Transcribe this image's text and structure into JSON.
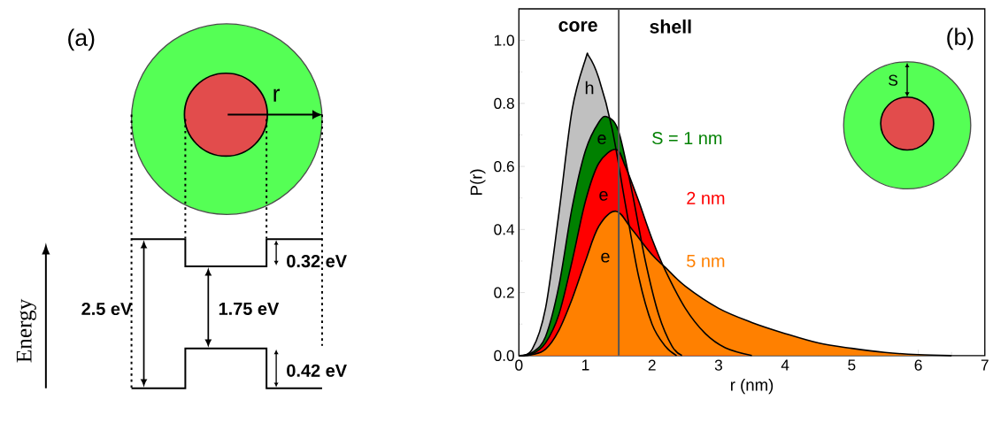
{
  "chart_data": [
    {
      "type": "other",
      "ylabel": "Energy",
      "annotations": [
        "(a)",
        "r",
        "2.5 eV",
        "1.75 eV",
        "0.32 eV",
        "0.42 eV"
      ]
    },
    {
      "type": "area",
      "xlabel": "r (nm)",
      "ylabel": "P(r)",
      "xlim": [
        0,
        7
      ],
      "ylim": [
        0,
        1.1
      ],
      "xticks": [
        0,
        1,
        2,
        3,
        4,
        5,
        6,
        7
      ],
      "yticks": [
        {
          "value": 0,
          "label": "0.0"
        },
        {
          "value": 0.2,
          "label": "0.2"
        },
        {
          "value": 0.4,
          "label": "0.4"
        },
        {
          "value": 0.6,
          "label": "0.6"
        },
        {
          "value": 0.8,
          "label": "0.8"
        },
        {
          "value": 1.0,
          "label": "1.0"
        }
      ],
      "series": [
        {
          "name": "h",
          "color": "#c0c0c0",
          "x": [
            0,
            0.2,
            0.4,
            0.6,
            0.8,
            1.0,
            1.05,
            1.2,
            1.4,
            1.6,
            1.8,
            2.0,
            2.2,
            2.37
          ],
          "values": [
            0,
            0.02,
            0.15,
            0.45,
            0.78,
            0.94,
            0.95,
            0.88,
            0.72,
            0.48,
            0.25,
            0.1,
            0.03,
            0
          ]
        },
        {
          "name": "S = 1 nm",
          "color": "#008000",
          "x": [
            0,
            0.2,
            0.4,
            0.6,
            0.8,
            1.0,
            1.2,
            1.33,
            1.5,
            1.7,
            1.9,
            2.1,
            2.3,
            2.45
          ],
          "values": [
            0,
            0.01,
            0.06,
            0.22,
            0.47,
            0.65,
            0.74,
            0.757,
            0.71,
            0.52,
            0.3,
            0.13,
            0.03,
            0
          ]
        },
        {
          "name": "2 nm",
          "color": "#ff0000",
          "x": [
            0,
            0.2,
            0.4,
            0.6,
            0.8,
            1.0,
            1.2,
            1.46,
            1.6,
            1.8,
            2.0,
            2.2,
            2.5,
            2.8,
            3.1,
            3.5
          ],
          "values": [
            0,
            0.005,
            0.04,
            0.13,
            0.3,
            0.49,
            0.61,
            0.654,
            0.6,
            0.49,
            0.37,
            0.27,
            0.15,
            0.07,
            0.025,
            0
          ]
        },
        {
          "name": "5 nm",
          "color": "#ff8000",
          "x": [
            0,
            0.2,
            0.4,
            0.6,
            0.8,
            1.0,
            1.2,
            1.46,
            1.7,
            2.0,
            2.2,
            2.5,
            3.0,
            3.5,
            4.0,
            4.5,
            5.0,
            5.5,
            6.0,
            6.5
          ],
          "values": [
            0,
            0.003,
            0.02,
            0.08,
            0.18,
            0.3,
            0.41,
            0.458,
            0.4,
            0.32,
            0.28,
            0.22,
            0.15,
            0.105,
            0.07,
            0.04,
            0.023,
            0.01,
            0.003,
            0
          ]
        }
      ],
      "ref_lines": [
        {
          "axis": "x",
          "value": 1.5,
          "color": "#555555"
        }
      ],
      "annotations": [
        "core",
        "shell",
        "(b)",
        "S",
        "e",
        "e",
        "e"
      ]
    }
  ]
}
